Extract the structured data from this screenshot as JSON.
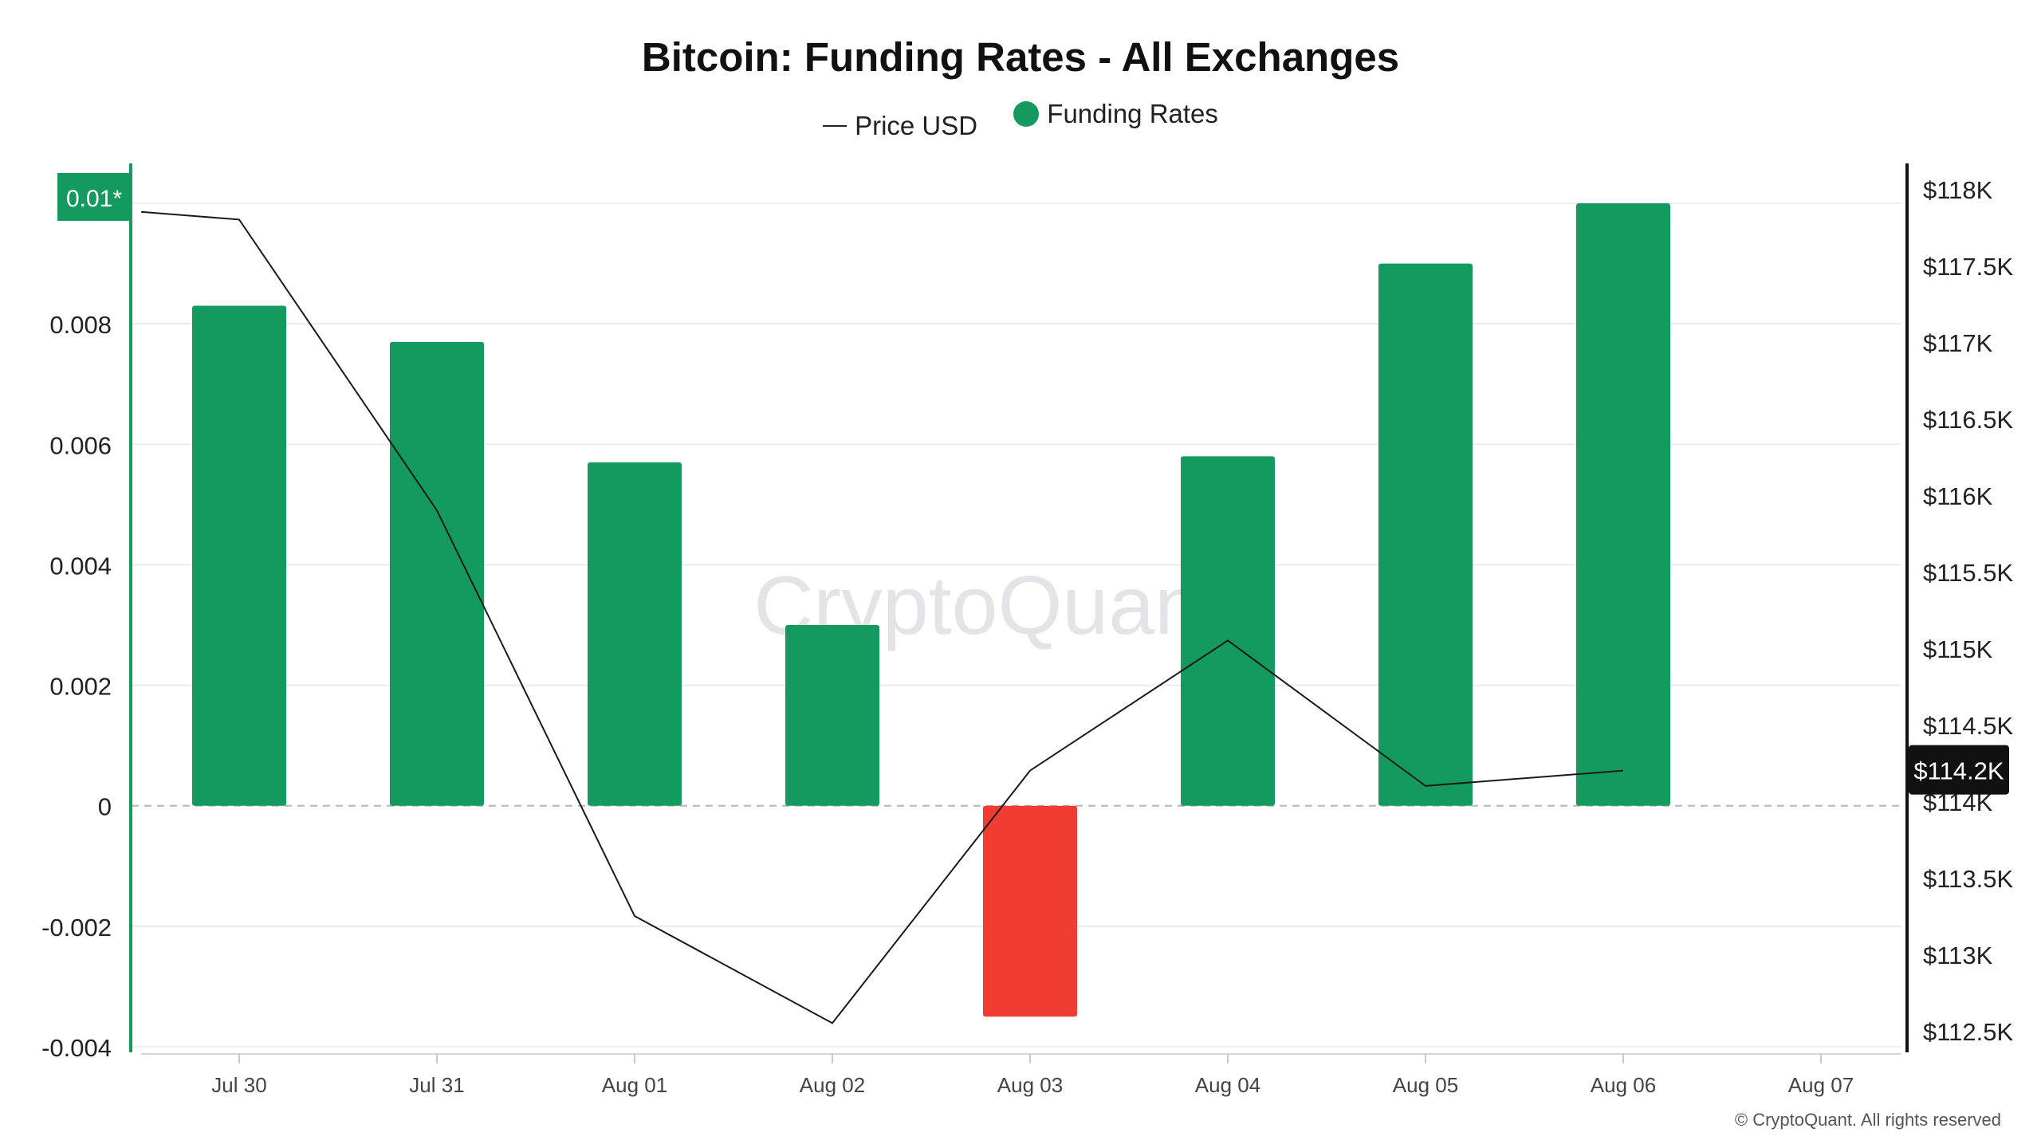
{
  "header": {
    "title": "Bitcoin: Funding Rates - All Exchanges"
  },
  "legend": {
    "price_label": "Price USD",
    "funding_label": "Funding Rates"
  },
  "watermark": "CryptoQuant",
  "footer": "© CryptoQuant. All rights reserved",
  "colors": {
    "positive": "#149a5f",
    "negative": "#f03c32",
    "price_line": "#1a1a1a",
    "left_axis": "#149a5f",
    "price_badge_bg": "#111111"
  },
  "chart_data": {
    "type": "bar",
    "title": "Bitcoin: Funding Rates - All Exchanges",
    "categories": [
      "Jul 30",
      "Jul 31",
      "Aug 01",
      "Aug 02",
      "Aug 03",
      "Aug 04",
      "Aug 05",
      "Aug 06",
      "Aug 07"
    ],
    "series": [
      {
        "name": "Funding Rates",
        "type": "bar",
        "axis": "left",
        "values": [
          0.0083,
          0.0077,
          0.0057,
          0.003,
          -0.0035,
          0.0058,
          0.009,
          0.01,
          null
        ]
      },
      {
        "name": "Price USD",
        "type": "line",
        "axis": "right",
        "values": [
          117800,
          115900,
          113250,
          112550,
          114200,
          115050,
          114100,
          114200,
          null
        ]
      }
    ],
    "left_axis": {
      "ylim": [
        -0.004,
        0.01
      ],
      "ticks": [
        -0.004,
        -0.002,
        0,
        0.002,
        0.004,
        0.006,
        0.008
      ],
      "tick_labels": [
        "-0.004",
        "-0.002",
        "0",
        "0.002",
        "0.004",
        "0.006",
        "0.008"
      ],
      "top_badge": "0.01*"
    },
    "right_axis": {
      "ylim": [
        112500,
        118000
      ],
      "ticks": [
        112500,
        113000,
        113500,
        114000,
        114500,
        115000,
        115500,
        116000,
        116500,
        117000,
        117500,
        118000
      ],
      "tick_labels": [
        "$112.5K",
        "$113K",
        "$113.5K",
        "$114K",
        "$114.5K",
        "$115K",
        "$115.5K",
        "$116K",
        "$116.5K",
        "$117K",
        "$117.5K",
        "$118K"
      ],
      "current_badge": "$114.2K",
      "current_value": 114200
    },
    "price_start_value": 117850,
    "grid": true,
    "legend_position": "top-center"
  }
}
